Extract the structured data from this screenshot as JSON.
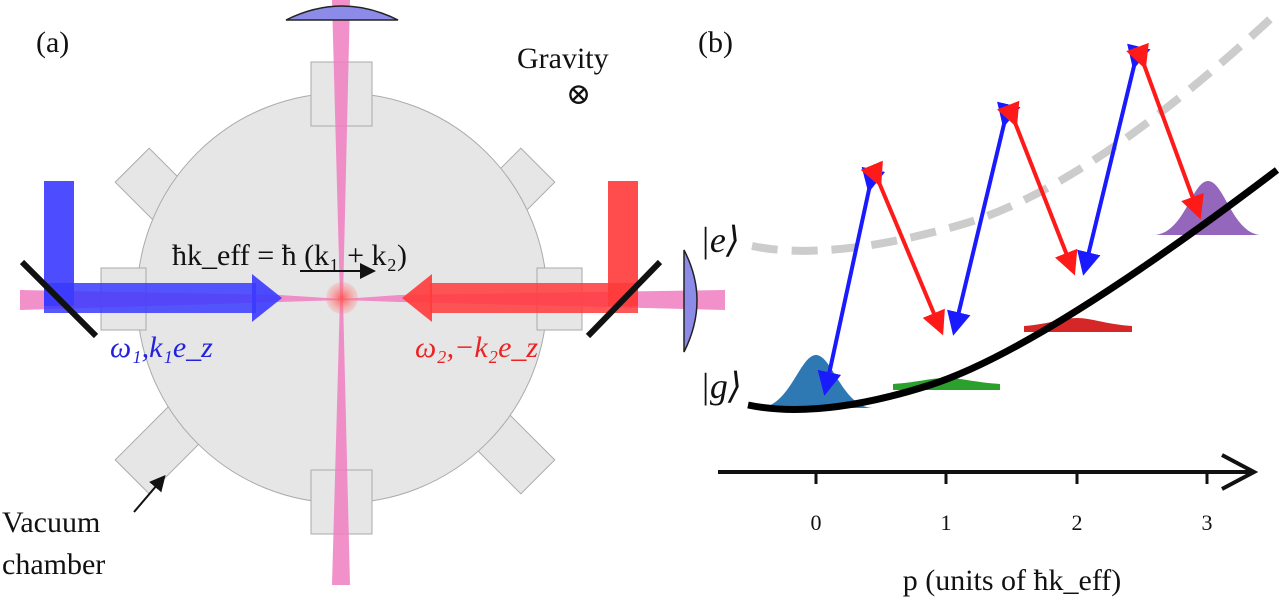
{
  "panel_a": {
    "label": "(a)",
    "gravity_label": "Gravity",
    "gravity_symbol": "⊗",
    "momentum_equation": "ħk_eff = ħ (k₁ + k₂)",
    "beam1_label": "ω₁,k₁e_z",
    "beam2_label": "ω₂,−k₂e_z",
    "chamber_label_line1": "Vacuum",
    "chamber_label_line2": "chamber",
    "colors": {
      "beam1": "#3a3aff",
      "beam2": "#ff3a3a",
      "probe": "#f07cc0",
      "chamber": "#e6e6e6",
      "lens": "#8c8ce8"
    }
  },
  "panel_b": {
    "label": "(b)",
    "excited_state_label": "|e⟩",
    "ground_state_label": "|g⟩",
    "x_ticks": [
      "0",
      "1",
      "2",
      "3"
    ],
    "x_axis_label": "p (units of ħk_eff)",
    "wavepacket_colors": [
      "#2e78b4",
      "#2ca02c",
      "#d62728",
      "#9467bd"
    ],
    "excited_curve_color": "#cccccc",
    "ground_curve_color": "#000000"
  }
}
